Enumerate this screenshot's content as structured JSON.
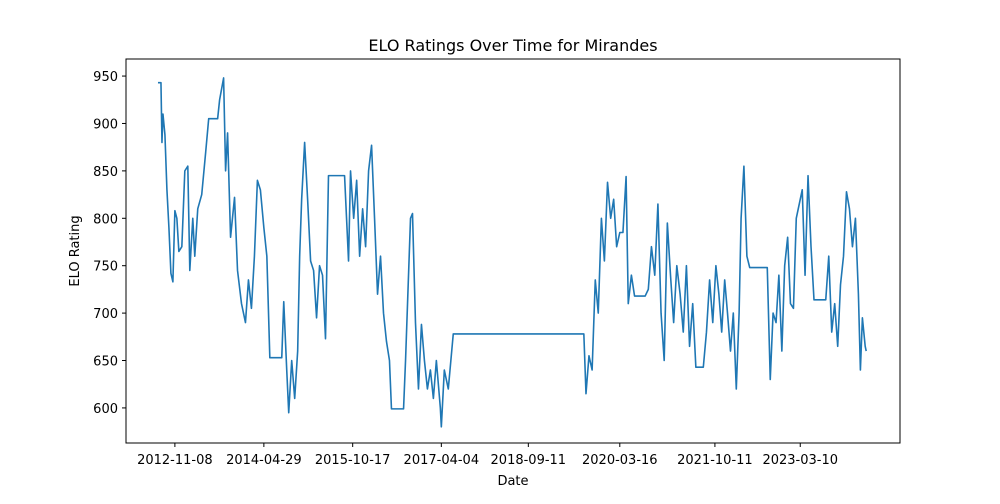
{
  "chart_data": {
    "type": "line",
    "title": "ELO Ratings Over Time for Mirandes",
    "x_label": "Date",
    "y_label": "ELO Rating",
    "xlim": [
      "2012-01-18",
      "2024-11-01"
    ],
    "ylim": [
      563,
      968
    ],
    "xticks": [
      "2012-11-08",
      "2014-04-29",
      "2015-10-17",
      "2017-04-04",
      "2018-09-11",
      "2020-03-16",
      "2021-10-11",
      "2023-03-10"
    ],
    "yticks": [
      600,
      650,
      700,
      750,
      800,
      850,
      900,
      950
    ],
    "grid": false,
    "x": [
      "2012-07-29",
      "2012-08-16",
      "2012-08-22",
      "2012-08-28",
      "2012-09-09",
      "2012-09-21",
      "2012-10-03",
      "2012-10-15",
      "2012-10-27",
      "2012-11-08",
      "2012-11-20",
      "2012-12-02",
      "2012-12-20",
      "2013-01-07",
      "2013-01-25",
      "2013-02-06",
      "2013-02-24",
      "2013-03-08",
      "2013-03-26",
      "2013-04-19",
      "2013-05-13",
      "2013-05-31",
      "2013-07-24",
      "2013-08-05",
      "2013-08-29",
      "2013-09-10",
      "2013-09-22",
      "2013-10-10",
      "2013-11-03",
      "2013-11-21",
      "2013-12-15",
      "2014-01-08",
      "2014-01-26",
      "2014-02-13",
      "2014-03-03",
      "2014-03-21",
      "2014-04-08",
      "2014-04-29",
      "2014-05-17",
      "2014-06-04",
      "2014-08-15",
      "2014-08-27",
      "2014-09-14",
      "2014-09-26",
      "2014-10-14",
      "2014-11-01",
      "2014-11-19",
      "2014-12-01",
      "2014-12-13",
      "2014-12-31",
      "2015-01-18",
      "2015-02-05",
      "2015-02-23",
      "2015-03-13",
      "2015-03-31",
      "2015-04-18",
      "2015-05-06",
      "2015-05-24",
      "2015-08-11",
      "2015-08-29",
      "2015-09-10",
      "2015-09-22",
      "2015-10-04",
      "2015-10-23",
      "2015-11-10",
      "2015-11-28",
      "2015-12-16",
      "2016-01-03",
      "2016-01-21",
      "2016-02-08",
      "2016-02-26",
      "2016-03-15",
      "2016-04-02",
      "2016-04-20",
      "2016-05-08",
      "2016-05-26",
      "2016-06-07",
      "2016-08-19",
      "2016-08-31",
      "2016-09-12",
      "2016-09-30",
      "2016-10-12",
      "2016-10-30",
      "2016-11-17",
      "2016-12-05",
      "2016-12-23",
      "2017-01-10",
      "2017-01-28",
      "2017-02-15",
      "2017-03-05",
      "2017-03-29",
      "2017-04-04",
      "2017-04-22",
      "2017-05-16",
      "2017-06-15",
      "2019-08-12",
      "2019-08-25",
      "2019-09-12",
      "2019-10-01",
      "2019-10-20",
      "2019-11-07",
      "2019-11-26",
      "2019-12-14",
      "2020-01-02",
      "2020-01-21",
      "2020-02-08",
      "2020-02-26",
      "2020-03-16",
      "2020-04-04",
      "2020-04-23",
      "2020-05-06",
      "2020-05-25",
      "2020-06-13",
      "2020-08-16",
      "2020-09-04",
      "2020-09-23",
      "2020-10-13",
      "2020-11-01",
      "2020-11-20",
      "2020-12-09",
      "2020-12-28",
      "2021-01-16",
      "2021-02-04",
      "2021-02-23",
      "2021-03-15",
      "2021-04-03",
      "2021-04-22",
      "2021-05-11",
      "2021-05-30",
      "2021-06-18",
      "2021-08-02",
      "2021-08-21",
      "2021-09-09",
      "2021-09-28",
      "2021-10-17",
      "2021-11-04",
      "2021-11-21",
      "2021-12-09",
      "2021-12-26",
      "2022-01-13",
      "2022-01-30",
      "2022-02-17",
      "2022-03-06",
      "2022-03-18",
      "2022-04-04",
      "2022-04-22",
      "2022-05-09",
      "2022-08-23",
      "2022-09-10",
      "2022-09-27",
      "2022-10-15",
      "2022-11-01",
      "2022-11-19",
      "2022-12-06",
      "2022-12-24",
      "2023-01-10",
      "2023-01-28",
      "2023-02-14",
      "2023-03-04",
      "2023-03-22",
      "2023-04-08",
      "2023-04-26",
      "2023-05-14",
      "2023-06-01",
      "2023-08-11",
      "2023-08-29",
      "2023-09-16",
      "2023-10-04",
      "2023-10-22",
      "2023-11-08",
      "2023-11-26",
      "2023-12-14",
      "2024-01-01",
      "2024-01-19",
      "2024-02-06",
      "2024-02-24",
      "2024-03-07",
      "2024-03-19",
      "2024-04-05",
      "2024-04-11"
    ],
    "series": [
      {
        "name": "ELO Rating",
        "color": "#1f77b4",
        "values": [
          943,
          943,
          880,
          910,
          888,
          830,
          790,
          742,
          733,
          808,
          800,
          765,
          770,
          850,
          855,
          745,
          800,
          760,
          810,
          825,
          870,
          905,
          905,
          925,
          948,
          850,
          890,
          780,
          822,
          745,
          710,
          690,
          735,
          705,
          760,
          840,
          830,
          790,
          760,
          653,
          653,
          712,
          640,
          595,
          650,
          610,
          660,
          760,
          820,
          880,
          820,
          755,
          745,
          695,
          750,
          740,
          673,
          845,
          845,
          845,
          800,
          755,
          850,
          800,
          840,
          760,
          810,
          770,
          850,
          877,
          800,
          720,
          760,
          700,
          670,
          650,
          599,
          599,
          650,
          710,
          800,
          805,
          690,
          620,
          688,
          650,
          620,
          640,
          610,
          650,
          600,
          580,
          640,
          620,
          678,
          678,
          615,
          655,
          640,
          735,
          700,
          800,
          755,
          838,
          800,
          820,
          770,
          785,
          785,
          844,
          710,
          740,
          718,
          718,
          725,
          770,
          740,
          815,
          700,
          650,
          795,
          740,
          690,
          750,
          720,
          680,
          750,
          665,
          710,
          643,
          643,
          680,
          735,
          690,
          750,
          720,
          680,
          735,
          700,
          660,
          700,
          620,
          700,
          800,
          855,
          760,
          748,
          748,
          630,
          700,
          690,
          740,
          660,
          750,
          780,
          710,
          705,
          800,
          815,
          830,
          740,
          845,
          770,
          714,
          714,
          760,
          680,
          710,
          665,
          730,
          760,
          828,
          810,
          770,
          800,
          720,
          640,
          695,
          665,
          660
        ]
      }
    ]
  }
}
